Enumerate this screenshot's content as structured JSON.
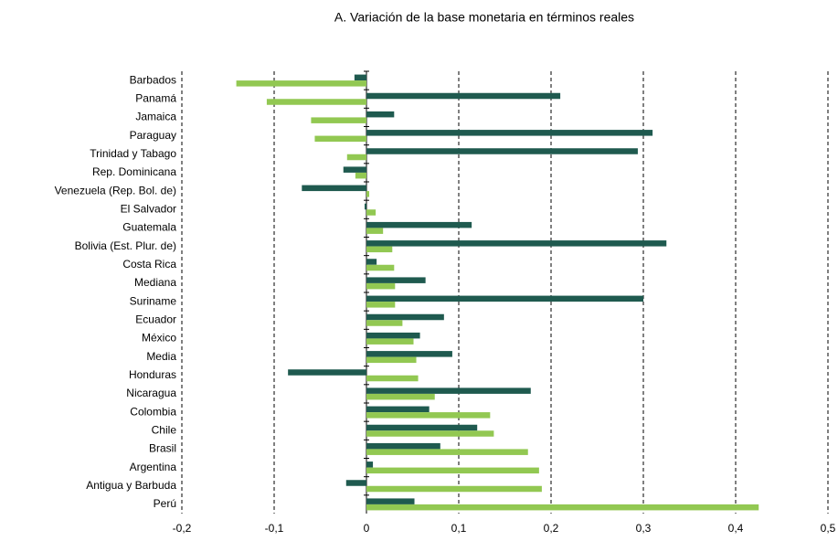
{
  "chart_data": {
    "type": "hbar",
    "title": "A. Variación de la base monetaria en términos reales",
    "categories": [
      "Barbados",
      "Panamá",
      "Jamaica",
      "Paraguay",
      "Trinidad y Tabago",
      "Rep. Dominicana",
      "Venezuela (Rep. Bol. de)",
      "El Salvador",
      "Guatemala",
      "Bolivia (Est. Plur. de)",
      "Costa Rica",
      "Mediana",
      "Suriname",
      "Ecuador",
      "México",
      "Media",
      "Honduras",
      "Nicaragua",
      "Colombia",
      "Chile",
      "Brasil",
      "Argentina",
      "Antigua y Barbuda",
      "Perú"
    ],
    "series": [
      {
        "color": "#1f5a4f",
        "values": [
          -0.013,
          0.21,
          0.03,
          0.31,
          0.294,
          -0.025,
          -0.07,
          -0.002,
          0.114,
          0.325,
          0.011,
          0.064,
          0.3,
          0.084,
          0.058,
          0.093,
          -0.085,
          0.178,
          0.068,
          0.12,
          0.08,
          0.007,
          -0.022,
          0.052
        ]
      },
      {
        "color": "#92c852",
        "values": [
          -0.141,
          -0.108,
          -0.06,
          -0.056,
          -0.021,
          -0.012,
          0.003,
          0.01,
          0.018,
          0.028,
          0.03,
          0.031,
          0.031,
          0.039,
          0.051,
          0.054,
          0.056,
          0.074,
          0.134,
          0.138,
          0.175,
          0.187,
          0.19,
          0.425
        ]
      }
    ],
    "xlim": [
      -0.2,
      0.5
    ],
    "xticks": [
      {
        "value": -0.2,
        "label": "-0,2"
      },
      {
        "value": -0.1,
        "label": "-0,1"
      },
      0,
      {
        "value": 0.1,
        "label": "0,1"
      },
      {
        "value": 0.2,
        "label": "0,2"
      },
      {
        "value": 0.3,
        "label": "0,3"
      },
      {
        "value": 0.4,
        "label": "0,4"
      },
      {
        "value": 0.5,
        "label": "0,5"
      }
    ],
    "grid": true
  }
}
